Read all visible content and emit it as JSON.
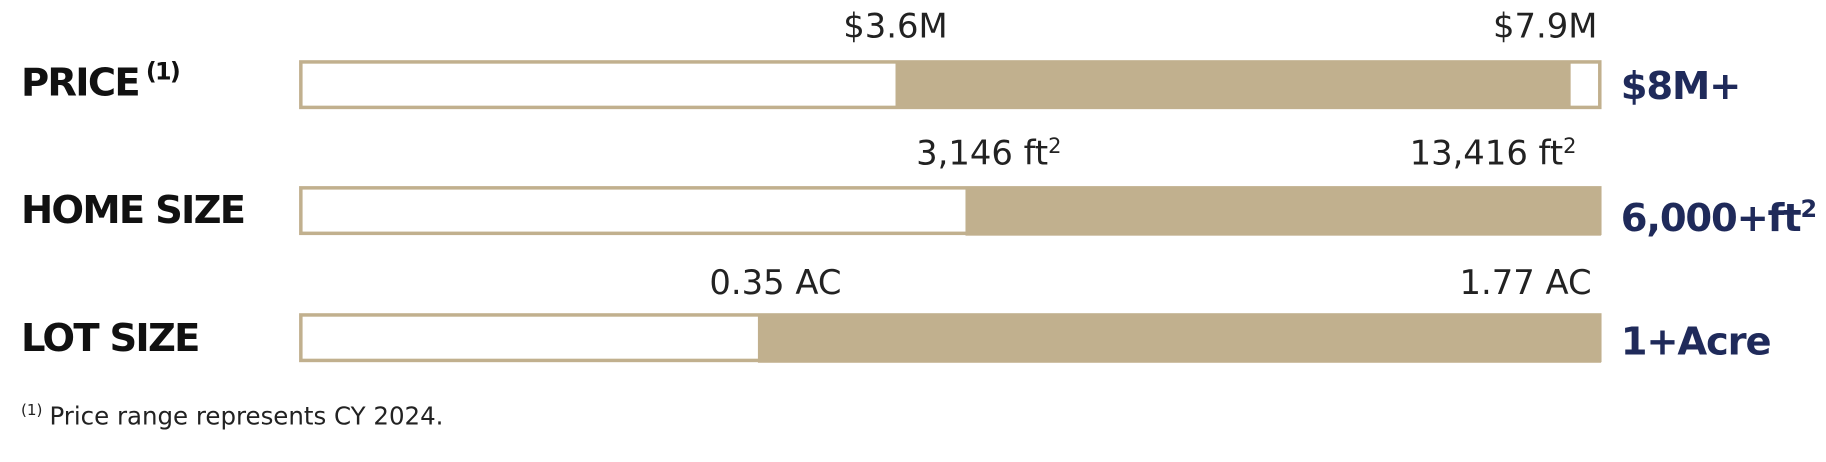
{
  "rows": [
    {
      "label": "PRICE",
      "label_note": "(1)",
      "low": {
        "text": "$3.6M"
      },
      "high": {
        "text": "$7.9M"
      },
      "target": {
        "text": "$8M+"
      }
    },
    {
      "label": "HOME SIZE",
      "low": {
        "text": "3,146 ft",
        "sup": "2"
      },
      "high": {
        "text": "13,416 ft",
        "sup": "2"
      },
      "target": {
        "text": "6,000+ft",
        "sup": "2"
      }
    },
    {
      "label": "LOT SIZE",
      "low": {
        "text": "0.35 AC"
      },
      "high": {
        "text": "1.77 AC"
      },
      "target": {
        "text": "1+Acre"
      }
    }
  ],
  "footnote": {
    "marker": "(1)",
    "text": "Price range represents CY 2024."
  }
}
